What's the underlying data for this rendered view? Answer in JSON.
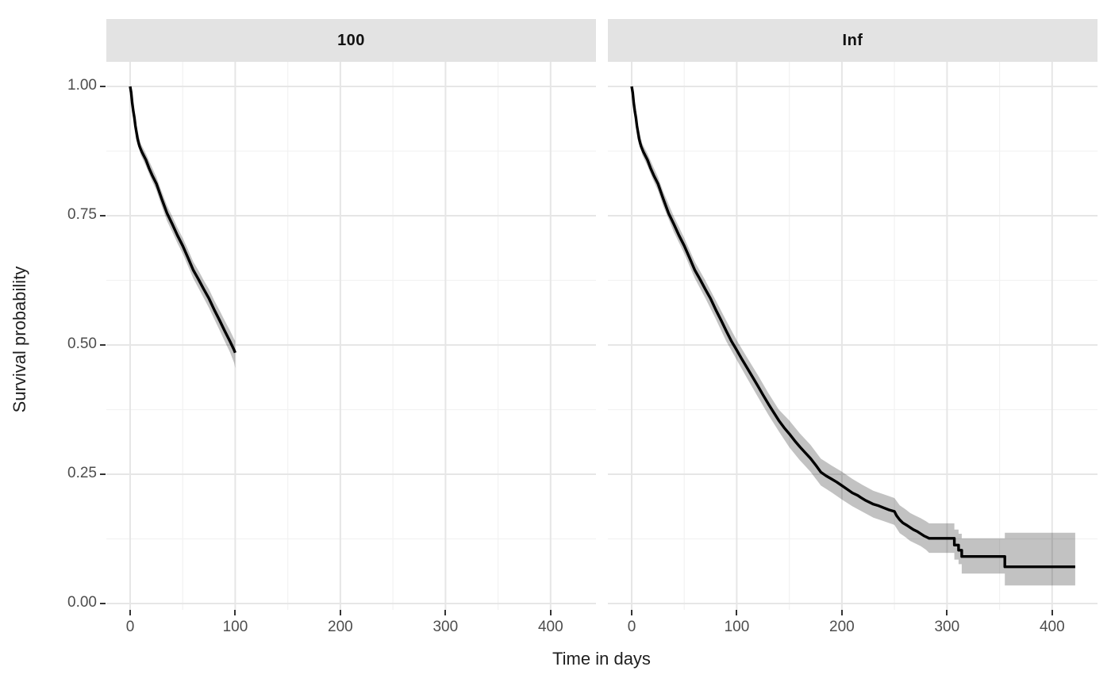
{
  "figure": {
    "y_axis_title": "Survival probability",
    "x_axis_title": "Time in days"
  },
  "style": {
    "curve_color": "#000000",
    "band_color": "rgba(0,0,0,0.24)",
    "strip_fill": "#e3e3e3",
    "grid_major": "#e6e6e6",
    "grid_minor": "#f2f2f2",
    "axis_text_color": "#4d4d4d",
    "tick_color": "#333333"
  },
  "chart_data": {
    "type": "line",
    "subtype": "kaplan-meier-survival-with-ci-band",
    "title": "",
    "xlabel": "Time in days",
    "ylabel": "Survival probability",
    "legend": "none",
    "grid": "major-and-minor",
    "xlim_days": [
      -22,
      443
    ],
    "ylim": [
      0,
      1.05
    ],
    "x_ticks": [
      {
        "label": "0",
        "value": 0
      },
      {
        "label": "100",
        "value": 100
      },
      {
        "label": "200",
        "value": 200
      },
      {
        "label": "300",
        "value": 300
      },
      {
        "label": "400",
        "value": 400
      }
    ],
    "x_minor": [
      50,
      150,
      250,
      350
    ],
    "y_ticks": [
      {
        "label": "1.00",
        "value": 1.0
      },
      {
        "label": "0.75",
        "value": 0.75
      },
      {
        "label": "0.50",
        "value": 0.5
      },
      {
        "label": "0.25",
        "value": 0.25
      },
      {
        "label": "0.00",
        "value": 0.0
      }
    ],
    "y_minor": [
      0.875,
      0.625,
      0.375,
      0.125
    ],
    "facets": [
      {
        "name": "100",
        "line": [
          [
            0,
            1.0
          ],
          [
            1,
            0.988
          ],
          [
            2,
            0.968
          ],
          [
            3,
            0.952
          ],
          [
            4,
            0.94
          ],
          [
            5,
            0.924
          ],
          [
            6,
            0.912
          ],
          [
            7,
            0.899
          ],
          [
            8,
            0.891
          ],
          [
            9,
            0.884
          ],
          [
            10,
            0.879
          ],
          [
            11,
            0.874
          ],
          [
            12,
            0.87
          ],
          [
            13,
            0.866
          ],
          [
            15,
            0.858
          ],
          [
            18,
            0.842
          ],
          [
            21,
            0.828
          ],
          [
            25,
            0.812
          ],
          [
            30,
            0.783
          ],
          [
            35,
            0.755
          ],
          [
            40,
            0.734
          ],
          [
            45,
            0.712
          ],
          [
            50,
            0.692
          ],
          [
            55,
            0.669
          ],
          [
            60,
            0.645
          ],
          [
            65,
            0.627
          ],
          [
            70,
            0.608
          ],
          [
            75,
            0.59
          ],
          [
            80,
            0.568
          ],
          [
            85,
            0.548
          ],
          [
            90,
            0.527
          ],
          [
            95,
            0.507
          ],
          [
            99,
            0.49
          ],
          [
            100,
            0.485
          ]
        ],
        "band": [
          [
            0,
            0.995,
            1.0
          ],
          [
            2,
            0.96,
            0.976
          ],
          [
            5,
            0.916,
            0.932
          ],
          [
            10,
            0.868,
            0.89
          ],
          [
            15,
            0.846,
            0.87
          ],
          [
            20,
            0.821,
            0.847
          ],
          [
            25,
            0.799,
            0.825
          ],
          [
            30,
            0.769,
            0.797
          ],
          [
            35,
            0.74,
            0.77
          ],
          [
            40,
            0.719,
            0.749
          ],
          [
            45,
            0.697,
            0.727
          ],
          [
            50,
            0.677,
            0.707
          ],
          [
            55,
            0.653,
            0.685
          ],
          [
            60,
            0.629,
            0.661
          ],
          [
            65,
            0.61,
            0.644
          ],
          [
            70,
            0.591,
            0.625
          ],
          [
            75,
            0.572,
            0.608
          ],
          [
            80,
            0.55,
            0.586
          ],
          [
            85,
            0.529,
            0.567
          ],
          [
            90,
            0.507,
            0.547
          ],
          [
            95,
            0.486,
            0.528
          ],
          [
            99,
            0.465,
            0.511
          ],
          [
            100,
            0.455,
            0.508
          ]
        ]
      },
      {
        "name": "Inf",
        "line": [
          [
            0,
            1.0
          ],
          [
            1,
            0.988
          ],
          [
            2,
            0.968
          ],
          [
            3,
            0.952
          ],
          [
            4,
            0.94
          ],
          [
            5,
            0.924
          ],
          [
            6,
            0.912
          ],
          [
            7,
            0.899
          ],
          [
            8,
            0.891
          ],
          [
            9,
            0.884
          ],
          [
            10,
            0.879
          ],
          [
            11,
            0.874
          ],
          [
            12,
            0.87
          ],
          [
            13,
            0.866
          ],
          [
            15,
            0.858
          ],
          [
            18,
            0.842
          ],
          [
            21,
            0.828
          ],
          [
            25,
            0.812
          ],
          [
            30,
            0.783
          ],
          [
            35,
            0.755
          ],
          [
            40,
            0.734
          ],
          [
            45,
            0.712
          ],
          [
            50,
            0.692
          ],
          [
            55,
            0.669
          ],
          [
            60,
            0.645
          ],
          [
            65,
            0.627
          ],
          [
            70,
            0.608
          ],
          [
            75,
            0.59
          ],
          [
            80,
            0.568
          ],
          [
            85,
            0.548
          ],
          [
            90,
            0.527
          ],
          [
            95,
            0.507
          ],
          [
            100,
            0.49
          ],
          [
            105,
            0.472
          ],
          [
            110,
            0.455
          ],
          [
            115,
            0.438
          ],
          [
            120,
            0.421
          ],
          [
            125,
            0.403
          ],
          [
            130,
            0.386
          ],
          [
            135,
            0.37
          ],
          [
            140,
            0.354
          ],
          [
            145,
            0.34
          ],
          [
            150,
            0.328
          ],
          [
            155,
            0.315
          ],
          [
            160,
            0.303
          ],
          [
            165,
            0.292
          ],
          [
            170,
            0.281
          ],
          [
            175,
            0.268
          ],
          [
            180,
            0.254
          ],
          [
            185,
            0.247
          ],
          [
            190,
            0.241
          ],
          [
            195,
            0.235
          ],
          [
            200,
            0.228
          ],
          [
            205,
            0.221
          ],
          [
            210,
            0.214
          ],
          [
            215,
            0.209
          ],
          [
            218,
            0.205
          ],
          [
            222,
            0.2
          ],
          [
            226,
            0.196
          ],
          [
            230,
            0.192
          ],
          [
            235,
            0.189
          ],
          [
            240,
            0.185
          ],
          [
            245,
            0.181
          ],
          [
            250,
            0.178
          ],
          [
            252,
            0.17
          ],
          [
            255,
            0.162
          ],
          [
            258,
            0.156
          ],
          [
            262,
            0.151
          ],
          [
            265,
            0.147
          ],
          [
            268,
            0.143
          ],
          [
            272,
            0.139
          ],
          [
            275,
            0.135
          ],
          [
            278,
            0.131
          ],
          [
            281,
            0.128
          ],
          [
            283,
            0.126
          ],
          [
            307,
            0.126
          ],
          [
            307,
            0.113
          ],
          [
            311,
            0.113
          ],
          [
            311,
            0.103
          ],
          [
            314,
            0.103
          ],
          [
            314,
            0.091
          ],
          [
            355,
            0.091
          ],
          [
            355,
            0.071
          ],
          [
            422,
            0.071
          ]
        ],
        "band": [
          [
            0,
            0.995,
            1.0
          ],
          [
            2,
            0.96,
            0.976
          ],
          [
            5,
            0.916,
            0.932
          ],
          [
            10,
            0.868,
            0.89
          ],
          [
            15,
            0.846,
            0.87
          ],
          [
            20,
            0.821,
            0.847
          ],
          [
            25,
            0.799,
            0.825
          ],
          [
            30,
            0.769,
            0.797
          ],
          [
            40,
            0.719,
            0.749
          ],
          [
            50,
            0.677,
            0.707
          ],
          [
            60,
            0.629,
            0.661
          ],
          [
            70,
            0.591,
            0.625
          ],
          [
            80,
            0.55,
            0.586
          ],
          [
            90,
            0.507,
            0.547
          ],
          [
            100,
            0.471,
            0.509
          ],
          [
            110,
            0.435,
            0.475
          ],
          [
            120,
            0.4,
            0.442
          ],
          [
            130,
            0.365,
            0.407
          ],
          [
            140,
            0.333,
            0.375
          ],
          [
            150,
            0.302,
            0.354
          ],
          [
            160,
            0.277,
            0.329
          ],
          [
            170,
            0.255,
            0.307
          ],
          [
            180,
            0.228,
            0.28
          ],
          [
            190,
            0.215,
            0.267
          ],
          [
            200,
            0.201,
            0.255
          ],
          [
            210,
            0.188,
            0.241
          ],
          [
            220,
            0.177,
            0.229
          ],
          [
            230,
            0.166,
            0.218
          ],
          [
            240,
            0.159,
            0.211
          ],
          [
            250,
            0.152,
            0.204
          ],
          [
            255,
            0.136,
            0.19
          ],
          [
            260,
            0.129,
            0.183
          ],
          [
            265,
            0.121,
            0.175
          ],
          [
            270,
            0.116,
            0.17
          ],
          [
            275,
            0.111,
            0.165
          ],
          [
            280,
            0.104,
            0.159
          ],
          [
            283,
            0.098,
            0.155
          ],
          [
            307,
            0.098,
            0.155
          ],
          [
            307,
            0.085,
            0.143
          ],
          [
            311,
            0.085,
            0.143
          ],
          [
            311,
            0.076,
            0.135
          ],
          [
            314,
            0.076,
            0.135
          ],
          [
            314,
            0.058,
            0.126
          ],
          [
            355,
            0.058,
            0.126
          ],
          [
            355,
            0.035,
            0.137
          ],
          [
            422,
            0.035,
            0.137
          ]
        ]
      }
    ]
  }
}
